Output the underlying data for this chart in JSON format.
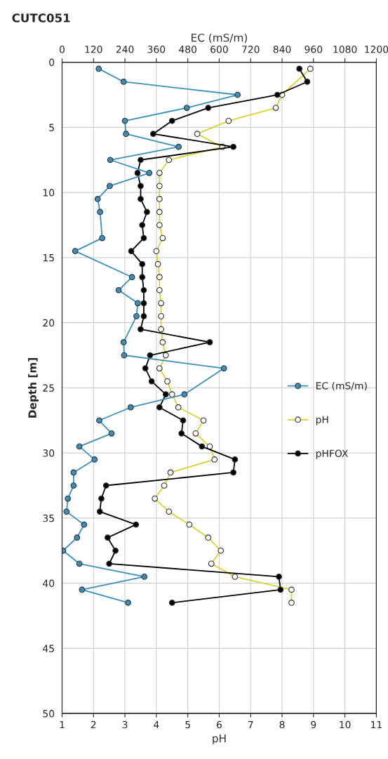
{
  "chart_data": {
    "type": "line",
    "title": "CUTC051",
    "xlabel": "pH",
    "x2label": "EC (mS/m)",
    "ylabel": "Depth [m]",
    "xlim": [
      1,
      11
    ],
    "xticks": [
      1,
      2,
      3,
      4,
      5,
      6,
      7,
      8,
      9,
      10,
      11
    ],
    "x2lim": [
      0,
      1200
    ],
    "x2ticks": [
      0,
      120,
      240,
      360,
      480,
      600,
      720,
      840,
      960,
      1080,
      1200
    ],
    "ylim": [
      50,
      0
    ],
    "yticks": [
      0,
      5,
      10,
      15,
      20,
      25,
      30,
      35,
      40,
      45,
      50
    ],
    "grid": true,
    "legend": "right",
    "marker": "circle",
    "line_style": "solid",
    "series": [
      {
        "name": "EC (mS/m)",
        "color": "#3b8fb8",
        "axis": "x2",
        "x": [
          140,
          235,
          670,
          476,
          240,
          244,
          445,
          184,
          333,
          182,
          136,
          145,
          153,
          50,
          267,
          216,
          289,
          284,
          235,
          237,
          618,
          467,
          262,
          142,
          189,
          66,
          124,
          44,
          44,
          22,
          17,
          84,
          57,
          4,
          66,
          314,
          76,
          252
        ],
        "values": [
          0.5,
          1.5,
          2.5,
          3.5,
          4.5,
          5.5,
          6.5,
          7.5,
          8.5,
          9.5,
          10.5,
          11.5,
          13.5,
          14.5,
          16.5,
          17.5,
          18.5,
          19.5,
          21.5,
          22.5,
          23.5,
          25.5,
          26.5,
          27.5,
          28.5,
          29.5,
          30.5,
          31.5,
          32.5,
          33.5,
          34.5,
          35.5,
          36.5,
          37.5,
          38.5,
          39.5,
          40.5,
          41.5
        ]
      },
      {
        "name": "pH",
        "color": "#ddd035",
        "x": [
          8.9,
          8.0,
          7.8,
          6.3,
          5.3,
          6.1,
          4.4,
          4.1,
          4.1,
          4.1,
          4.1,
          4.1,
          4.2,
          4.0,
          4.05,
          4.1,
          4.1,
          4.15,
          4.15,
          4.15,
          4.2,
          4.3,
          4.1,
          4.35,
          4.5,
          4.7,
          5.5,
          5.25,
          5.7,
          5.85,
          4.45,
          4.25,
          3.95,
          4.4,
          5.05,
          5.65,
          6.05,
          5.75,
          6.5,
          8.3,
          8.3
        ],
        "values": [
          0.5,
          2.5,
          3.5,
          4.5,
          5.5,
          6.5,
          7.5,
          8.5,
          9.5,
          10.5,
          11.5,
          12.5,
          13.5,
          14.5,
          15.5,
          16.5,
          17.5,
          18.5,
          19.5,
          20.5,
          21.5,
          22.5,
          23.5,
          24.5,
          25.5,
          26.5,
          27.5,
          28.5,
          29.5,
          30.5,
          31.5,
          32.5,
          33.5,
          34.5,
          35.5,
          36.5,
          37.5,
          38.5,
          39.5,
          40.5,
          41.5
        ]
      },
      {
        "name": "pHFOX",
        "color": "#000000",
        "x": [
          8.55,
          8.8,
          7.85,
          5.65,
          4.5,
          3.9,
          6.45,
          3.5,
          3.4,
          3.5,
          3.5,
          3.7,
          3.55,
          3.6,
          3.2,
          3.55,
          3.55,
          3.6,
          3.6,
          3.6,
          3.5,
          5.7,
          3.8,
          3.65,
          3.85,
          4.3,
          4.1,
          4.85,
          4.8,
          5.45,
          6.5,
          6.45,
          2.4,
          2.25,
          2.2,
          3.35,
          2.45,
          2.7,
          2.5,
          7.9,
          7.95,
          4.5
        ],
        "values": [
          0.5,
          1.5,
          2.5,
          3.5,
          4.5,
          5.5,
          6.5,
          7.5,
          8.5,
          9.5,
          10.5,
          11.5,
          12.5,
          13.5,
          14.5,
          15.5,
          16.5,
          17.5,
          18.5,
          19.5,
          20.5,
          21.5,
          22.5,
          23.5,
          24.5,
          25.5,
          26.5,
          27.5,
          28.5,
          29.5,
          30.5,
          31.5,
          32.5,
          33.5,
          34.5,
          35.5,
          36.5,
          37.5,
          38.5,
          39.5,
          40.5,
          41.5
        ]
      }
    ]
  }
}
